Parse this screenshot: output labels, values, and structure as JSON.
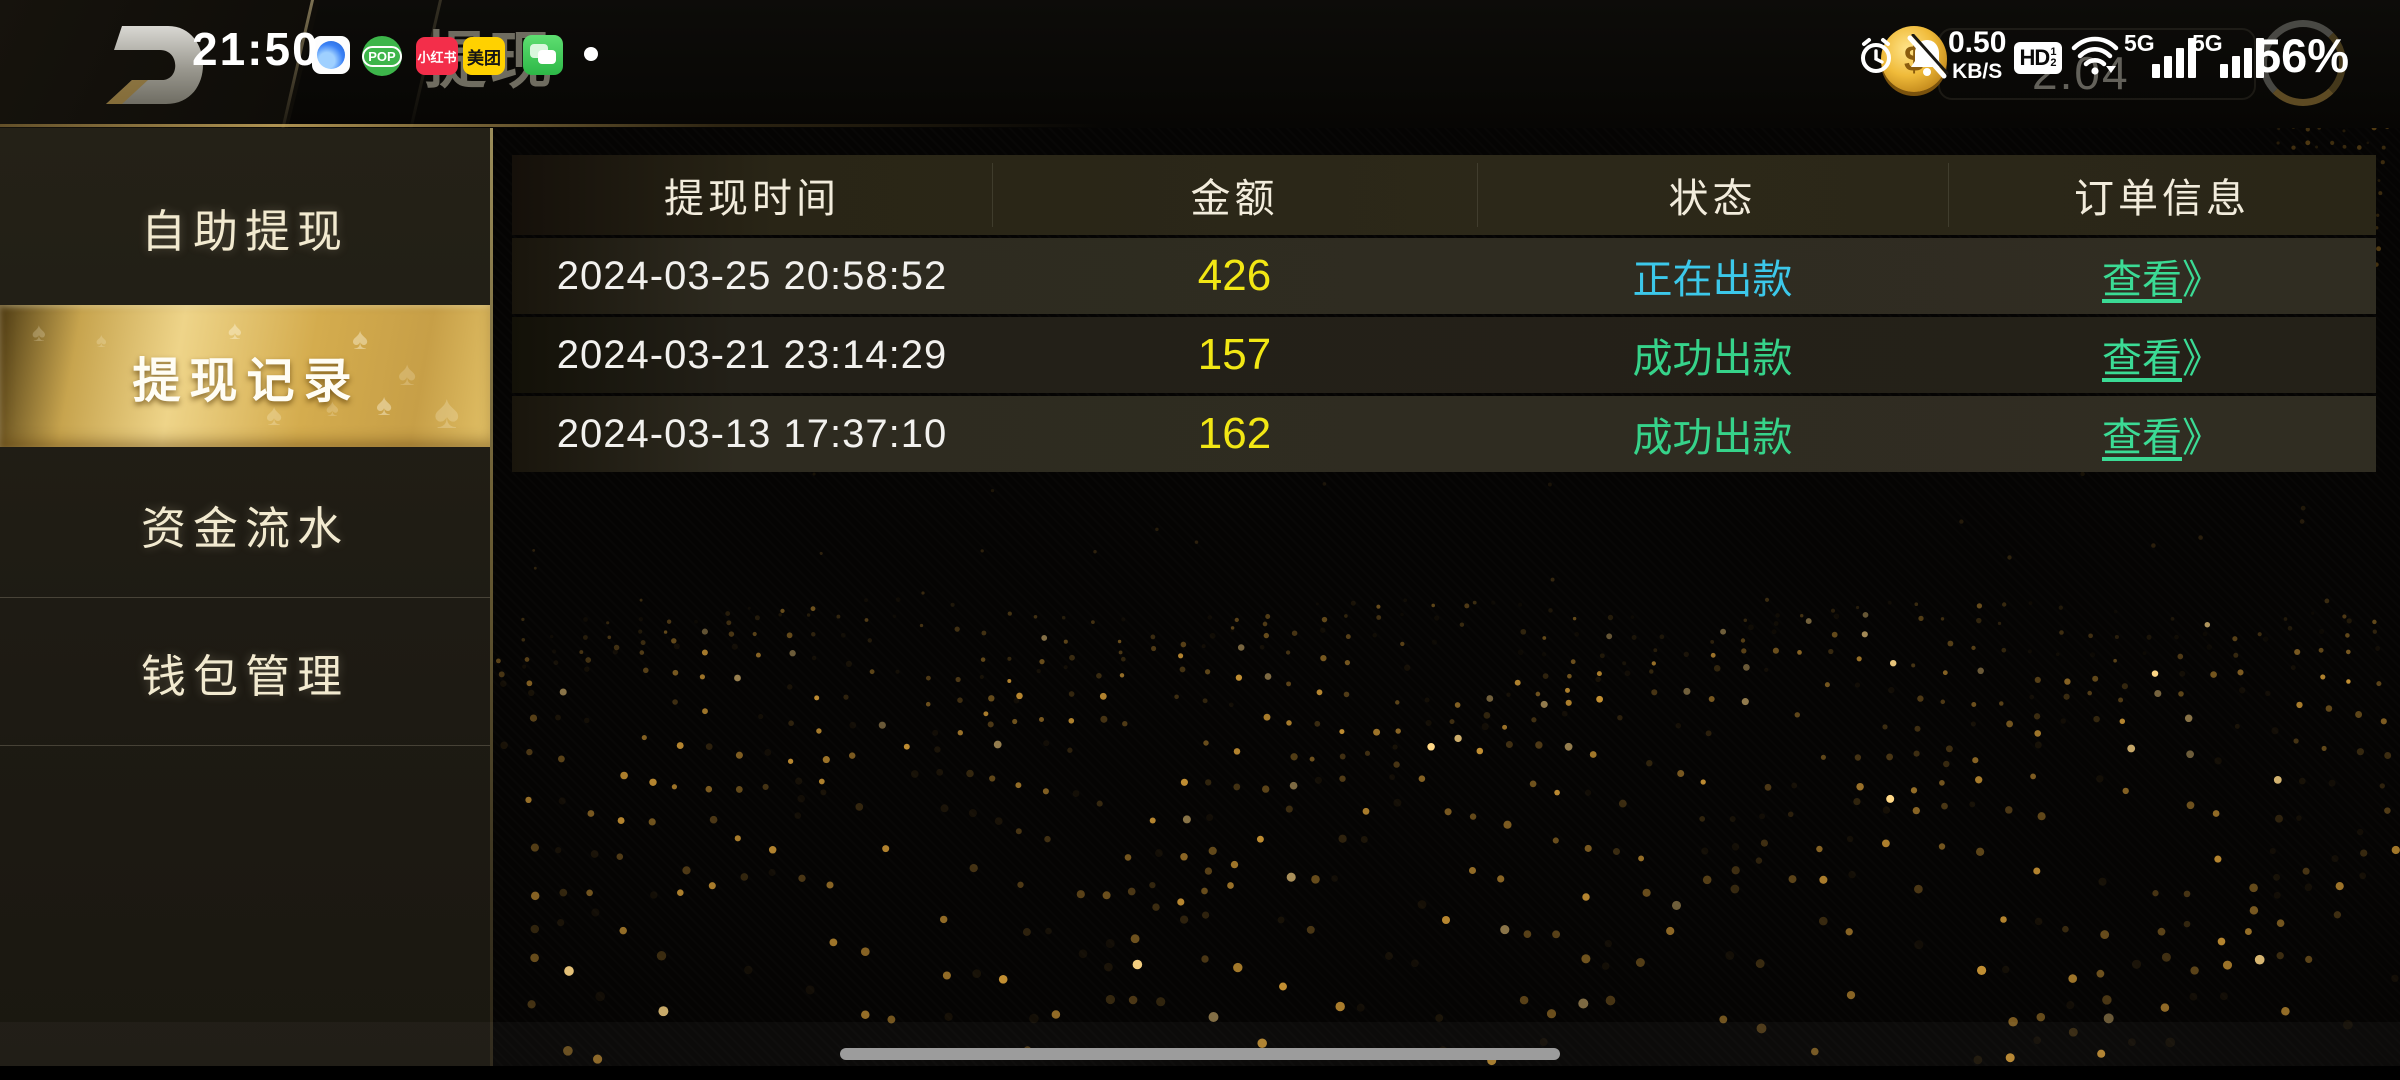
{
  "status_bar": {
    "time": "21:50",
    "underlay": {
      "page_title": "提现",
      "amount": "2.04"
    },
    "app_icons": {
      "pop_label": "POP",
      "xiaohongshu_label": "小红书",
      "meituan_label": "美团"
    },
    "net_speed": {
      "value": "0.50",
      "unit": "KB/S"
    },
    "hd": {
      "label": "HD",
      "sim1": "1",
      "sim2": "2"
    },
    "signal1_label": "5G",
    "signal2_label": "5G",
    "battery": "56%",
    "coin_symbol": "$"
  },
  "sidebar": {
    "selected_index": 1,
    "items": [
      {
        "label": "自助提现"
      },
      {
        "label": "提现记录"
      },
      {
        "label": "资金流水"
      },
      {
        "label": "钱包管理"
      }
    ]
  },
  "table": {
    "columns": [
      "提现时间",
      "金额",
      "状态",
      "订单信息"
    ],
    "rows": [
      {
        "time": "2024-03-25 20:58:52",
        "amount": "426",
        "status": "正在出款",
        "action": "查看",
        "action_arrow": "》"
      },
      {
        "time": "2024-03-21 23:14:29",
        "amount": "157",
        "status": "成功出款",
        "action": "查看",
        "action_arrow": "》"
      },
      {
        "time": "2024-03-13 17:37:10",
        "amount": "162",
        "status": "成功出款",
        "action": "查看",
        "action_arrow": "》"
      }
    ]
  },
  "colors": {
    "amount_yellow": "#f2e714",
    "status_processing": "#3cc8ea",
    "status_success": "#36d38a",
    "action_green": "#3bdb95",
    "selected_gold": "#d6b45e",
    "dot_gold": "#e6a93c"
  }
}
